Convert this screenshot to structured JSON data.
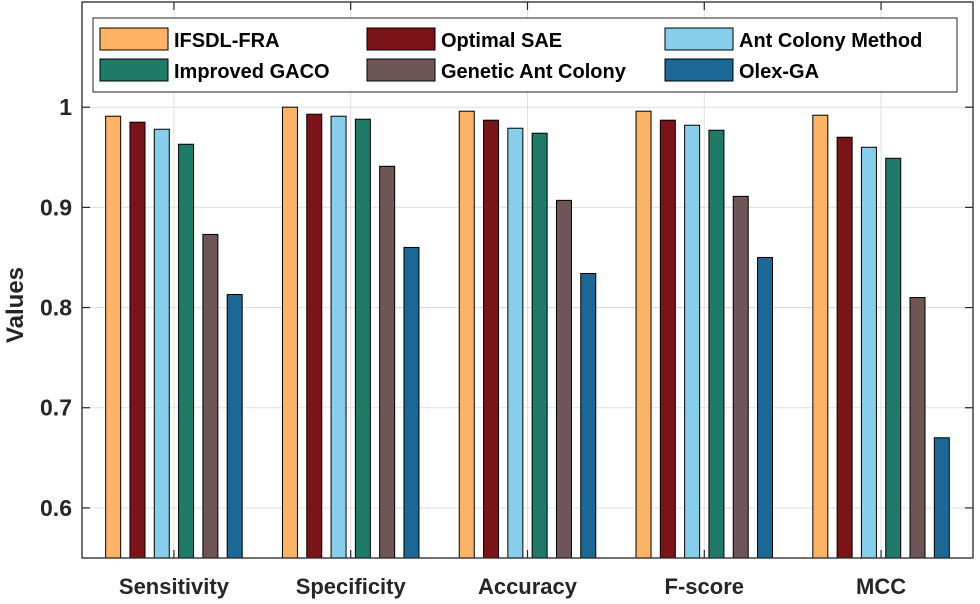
{
  "chart_data": {
    "type": "bar",
    "title": "",
    "xlabel": "",
    "ylabel": "Values",
    "ylim": [
      0.55,
      1.105
    ],
    "yticks": [
      "0.6",
      "0.7",
      "0.8",
      "0.9",
      "1"
    ],
    "ytick_values": [
      0.6,
      0.7,
      0.8,
      0.9,
      1.0
    ],
    "grid": true,
    "legend_position": "top",
    "categories": [
      "Sensitivity",
      "Specificity",
      "Accuracy",
      "F-score",
      "MCC"
    ],
    "series": [
      {
        "name": "IFSDL-FRA",
        "color": "#FDB366",
        "values": [
          0.991,
          1.0,
          0.996,
          0.996,
          0.992
        ]
      },
      {
        "name": "Optimal SAE",
        "color": "#7A1418",
        "values": [
          0.985,
          0.993,
          0.987,
          0.987,
          0.97
        ]
      },
      {
        "name": "Ant Colony Method",
        "color": "#87CEEB",
        "values": [
          0.978,
          0.991,
          0.979,
          0.982,
          0.96
        ]
      },
      {
        "name": "Improved GACO",
        "color": "#1F7A68",
        "values": [
          0.963,
          0.988,
          0.974,
          0.977,
          0.949
        ]
      },
      {
        "name": "Genetic Ant Colony",
        "color": "#6E5656",
        "values": [
          0.873,
          0.941,
          0.907,
          0.911,
          0.81
        ]
      },
      {
        "name": "Olex-GA",
        "color": "#1B6796",
        "values": [
          0.813,
          0.86,
          0.834,
          0.85,
          0.67
        ]
      }
    ]
  }
}
